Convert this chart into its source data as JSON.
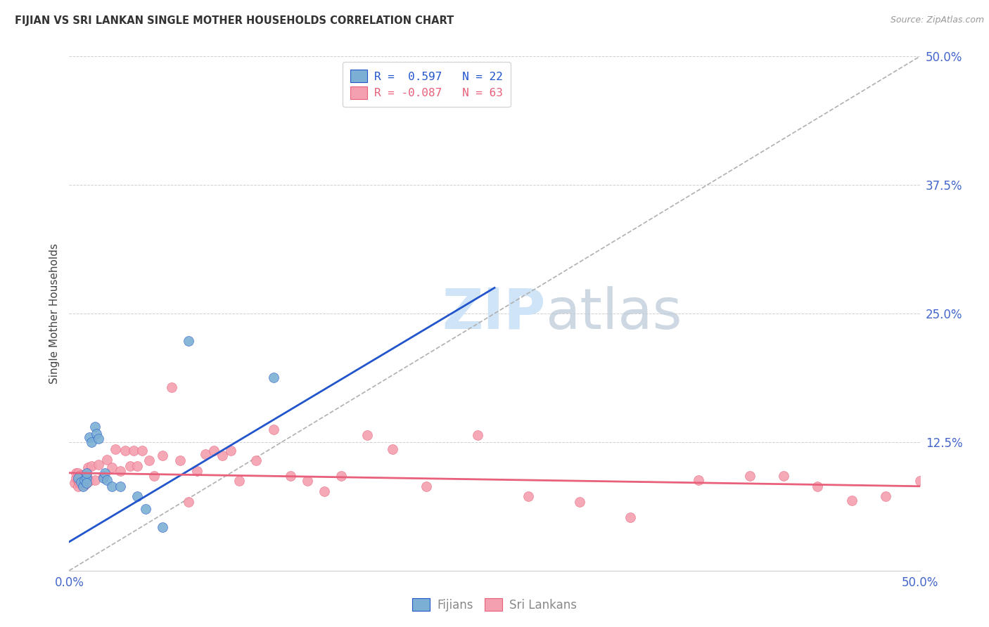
{
  "title": "FIJIAN VS SRI LANKAN SINGLE MOTHER HOUSEHOLDS CORRELATION CHART",
  "source": "Source: ZipAtlas.com",
  "ylabel": "Single Mother Households",
  "xlabel": "",
  "xlim": [
    0.0,
    0.5
  ],
  "ylim": [
    0.0,
    0.5
  ],
  "fijian_color": "#7bafd4",
  "srilanka_color": "#f4a0b0",
  "fijian_line_color": "#2255cc",
  "srilanka_line_color": "#e8607a",
  "ref_line_color": "#b0b0b0",
  "legend_label1": "R =  0.597   N = 22",
  "legend_label2": "R = -0.087   N = 63",
  "watermark_color": "#d0e4f7",
  "fijian_trend_x": [
    0.0,
    0.25
  ],
  "fijian_trend_y": [
    0.028,
    0.275
  ],
  "srilanka_trend_x": [
    0.0,
    0.5
  ],
  "srilanka_trend_y": [
    0.095,
    0.082
  ],
  "fijians_x": [
    0.005,
    0.007,
    0.008,
    0.009,
    0.01,
    0.01,
    0.01,
    0.012,
    0.013,
    0.015,
    0.016,
    0.017,
    0.02,
    0.021,
    0.022,
    0.025,
    0.03,
    0.04,
    0.045,
    0.055,
    0.07,
    0.12
  ],
  "fijians_y": [
    0.09,
    0.086,
    0.082,
    0.088,
    0.09,
    0.095,
    0.085,
    0.13,
    0.125,
    0.14,
    0.133,
    0.128,
    0.09,
    0.095,
    0.088,
    0.082,
    0.082,
    0.072,
    0.06,
    0.042,
    0.223,
    0.188
  ],
  "srilankans_x": [
    0.003,
    0.004,
    0.004,
    0.005,
    0.005,
    0.005,
    0.006,
    0.006,
    0.007,
    0.007,
    0.008,
    0.008,
    0.009,
    0.009,
    0.01,
    0.01,
    0.011,
    0.012,
    0.013,
    0.015,
    0.017,
    0.02,
    0.022,
    0.025,
    0.027,
    0.03,
    0.033,
    0.036,
    0.038,
    0.04,
    0.043,
    0.047,
    0.05,
    0.055,
    0.06,
    0.065,
    0.07,
    0.075,
    0.08,
    0.085,
    0.09,
    0.095,
    0.1,
    0.11,
    0.12,
    0.13,
    0.14,
    0.15,
    0.16,
    0.175,
    0.19,
    0.21,
    0.24,
    0.27,
    0.3,
    0.33,
    0.37,
    0.4,
    0.42,
    0.44,
    0.46,
    0.48,
    0.5
  ],
  "srilankans_y": [
    0.085,
    0.09,
    0.095,
    0.082,
    0.088,
    0.095,
    0.085,
    0.092,
    0.087,
    0.093,
    0.085,
    0.093,
    0.083,
    0.09,
    0.085,
    0.092,
    0.1,
    0.087,
    0.102,
    0.088,
    0.103,
    0.092,
    0.108,
    0.1,
    0.118,
    0.097,
    0.117,
    0.102,
    0.117,
    0.102,
    0.117,
    0.107,
    0.092,
    0.112,
    0.178,
    0.107,
    0.067,
    0.097,
    0.113,
    0.117,
    0.112,
    0.117,
    0.087,
    0.107,
    0.137,
    0.092,
    0.087,
    0.077,
    0.092,
    0.132,
    0.118,
    0.082,
    0.132,
    0.072,
    0.067,
    0.052,
    0.088,
    0.092,
    0.092,
    0.082,
    0.068,
    0.072,
    0.087
  ],
  "background_color": "#ffffff",
  "grid_color": "#d0d0d0"
}
